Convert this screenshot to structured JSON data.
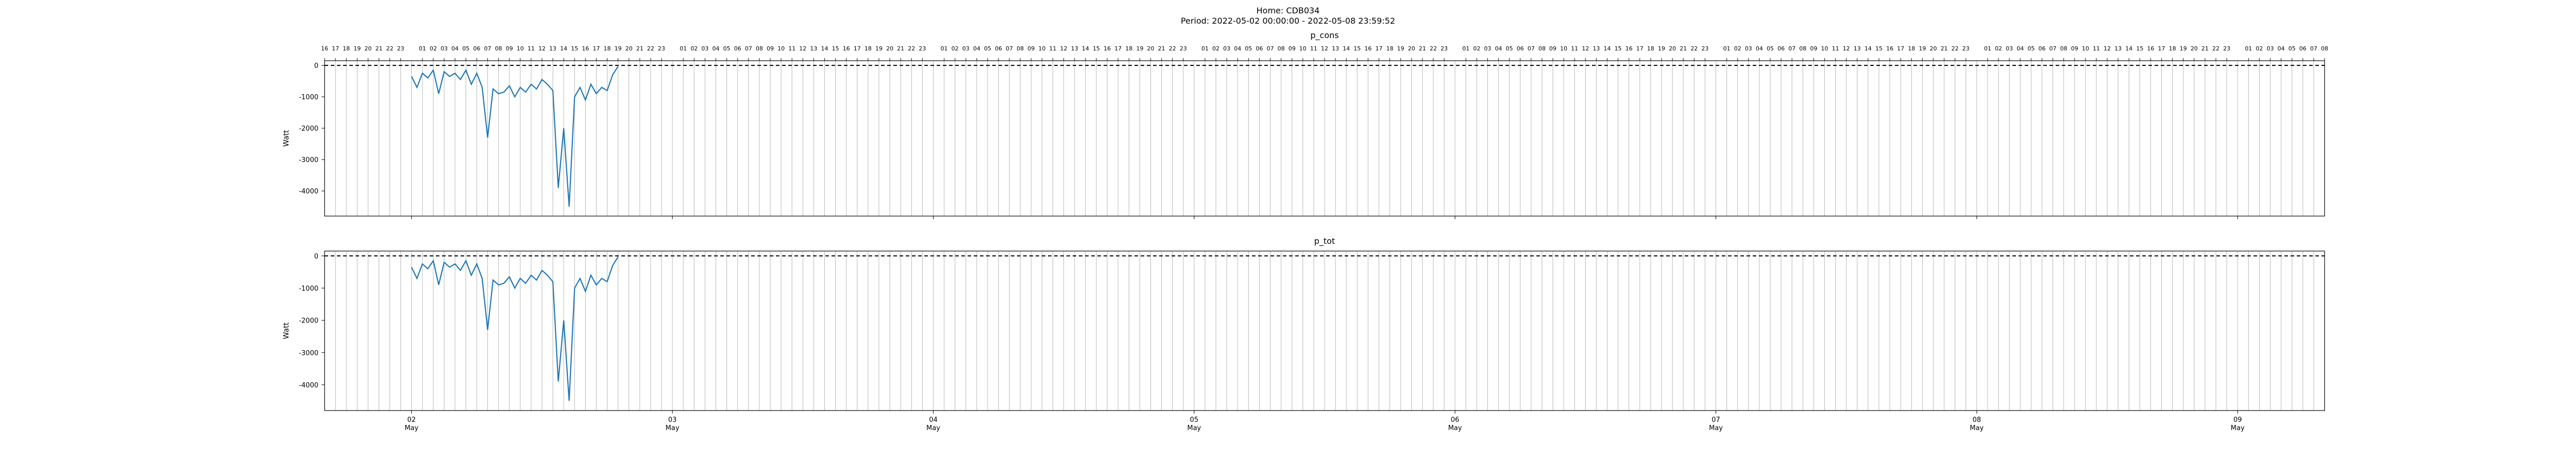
{
  "figure": {
    "title_line1": "Home: CDB034",
    "title_line2": "Period: 2022-05-02 00:00:00 - 2022-05-08 23:59:52"
  },
  "chart_data": [
    {
      "type": "line",
      "title": "p_cons",
      "ylabel": "Watt",
      "xlabel": "",
      "x_start": "2022-05-01 16:00",
      "x_end": "2022-05-09 08:00",
      "ylim": [
        -4800,
        150
      ],
      "yticks": [
        0,
        -1000,
        -2000,
        -3000,
        -4000
      ],
      "reference_line": {
        "y": 0,
        "style": "dashed",
        "color": "#000000"
      },
      "vertical_hour_gridlines": true,
      "top_hour_labels": true,
      "line_color": "#1f77b4",
      "series": [
        {
          "x_hours_since_2022_05_02_00_00": [
            0,
            0.5,
            1,
            1.5,
            2,
            2.5,
            3,
            3.5,
            4,
            4.5,
            5,
            5.5,
            6,
            6.5,
            7,
            7.5,
            8,
            8.5,
            9,
            9.5,
            10,
            10.5,
            11,
            11.5,
            12,
            12.5,
            13,
            13.5,
            14,
            14.5,
            15,
            15.5,
            16,
            16.5,
            17,
            17.5,
            18,
            18.5,
            19
          ],
          "values": [
            -350,
            -700,
            -250,
            -400,
            -150,
            -900,
            -200,
            -350,
            -250,
            -450,
            -150,
            -600,
            -250,
            -700,
            -2300,
            -750,
            -900,
            -850,
            -650,
            -1000,
            -700,
            -850,
            -600,
            -750,
            -450,
            -600,
            -800,
            -3900,
            -2000,
            -4500,
            -1000,
            -700,
            -1100,
            -600,
            -900,
            -700,
            -800,
            -300,
            -30
          ]
        }
      ]
    },
    {
      "type": "line",
      "title": "p_tot",
      "ylabel": "Watt",
      "xlabel": "",
      "x_start": "2022-05-01 16:00",
      "x_end": "2022-05-09 08:00",
      "ylim": [
        -4800,
        150
      ],
      "yticks": [
        0,
        -1000,
        -2000,
        -3000,
        -4000
      ],
      "reference_line": {
        "y": 0,
        "style": "dashed",
        "color": "#000000"
      },
      "vertical_hour_gridlines": true,
      "top_hour_labels": false,
      "line_color": "#1f77b4",
      "series": [
        {
          "x_hours_since_2022_05_02_00_00": [
            0,
            0.5,
            1,
            1.5,
            2,
            2.5,
            3,
            3.5,
            4,
            4.5,
            5,
            5.5,
            6,
            6.5,
            7,
            7.5,
            8,
            8.5,
            9,
            9.5,
            10,
            10.5,
            11,
            11.5,
            12,
            12.5,
            13,
            13.5,
            14,
            14.5,
            15,
            15.5,
            16,
            16.5,
            17,
            17.5,
            18,
            18.5,
            19
          ],
          "values": [
            -350,
            -700,
            -250,
            -400,
            -150,
            -900,
            -200,
            -350,
            -250,
            -450,
            -150,
            -600,
            -250,
            -700,
            -2300,
            -750,
            -900,
            -850,
            -650,
            -1000,
            -700,
            -850,
            -600,
            -750,
            -450,
            -600,
            -800,
            -3900,
            -2000,
            -4500,
            -1000,
            -700,
            -1100,
            -600,
            -900,
            -700,
            -800,
            -300,
            -30
          ]
        }
      ]
    }
  ],
  "bottom_axis": {
    "date_ticks": [
      {
        "day": "02",
        "month": "May"
      },
      {
        "day": "03",
        "month": "May"
      },
      {
        "day": "04",
        "month": "May"
      },
      {
        "day": "05",
        "month": "May"
      },
      {
        "day": "06",
        "month": "May"
      },
      {
        "day": "07",
        "month": "May"
      },
      {
        "day": "08",
        "month": "May"
      },
      {
        "day": "09",
        "month": "May"
      }
    ]
  }
}
